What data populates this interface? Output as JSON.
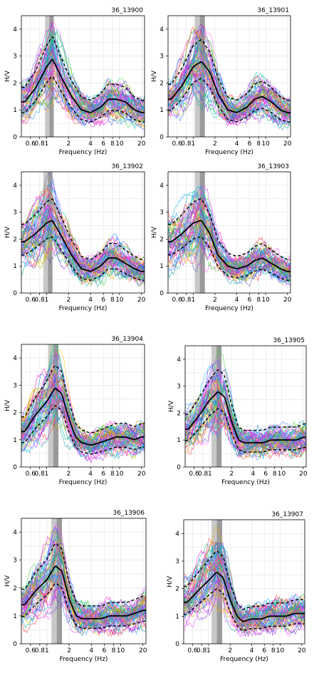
{
  "chart_data": [
    {
      "id": "36_13900",
      "type": "line",
      "title": "36_13900",
      "xlabel": "Frequency (Hz)",
      "ylabel": "H/V",
      "x_scale": "log",
      "xlim": [
        0.45,
        22
      ],
      "ylim": [
        0,
        4.5
      ],
      "xticks": [
        "0.6",
        "0.8",
        "1",
        "2",
        "4",
        "6",
        "8",
        "10",
        "20"
      ],
      "yticks": [
        "0",
        "1",
        "2",
        "3",
        "4"
      ],
      "mean_curve": {
        "x": [
          0.5,
          0.7,
          1.0,
          1.2,
          1.6,
          2.2,
          3.0,
          4.0,
          5.5,
          7.0,
          9.0,
          12,
          16,
          20
        ],
        "y": [
          1.3,
          1.8,
          2.6,
          2.9,
          2.2,
          1.5,
          1.0,
          0.9,
          1.1,
          1.4,
          1.4,
          1.3,
          1.0,
          0.9
        ]
      },
      "peak_band": [
        0.95,
        1.25
      ]
    },
    {
      "id": "36_13901",
      "type": "line",
      "title": "36_13901",
      "xlabel": "Frequency (Hz)",
      "ylabel": "H/V",
      "x_scale": "log",
      "xlim": [
        0.45,
        22
      ],
      "ylim": [
        0,
        4.5
      ],
      "xticks": [
        "0.6",
        "0.8",
        "1",
        "2",
        "4",
        "6",
        "8",
        "10",
        "20"
      ],
      "yticks": [
        "0",
        "1",
        "2",
        "3",
        "4"
      ],
      "mean_curve": {
        "x": [
          0.5,
          0.7,
          1.0,
          1.3,
          1.7,
          2.2,
          3.0,
          4.0,
          5.5,
          7.0,
          9.0,
          12,
          16,
          20
        ],
        "y": [
          1.4,
          1.9,
          2.6,
          2.8,
          2.4,
          1.6,
          1.0,
          0.9,
          1.1,
          1.4,
          1.5,
          1.3,
          1.0,
          0.9
        ]
      },
      "peak_band": [
        1.05,
        1.45
      ]
    },
    {
      "id": "36_13902",
      "type": "line",
      "title": "36_13902",
      "xlabel": "Frequency (Hz)",
      "ylabel": "H/V",
      "x_scale": "log",
      "xlim": [
        0.45,
        22
      ],
      "ylim": [
        0,
        4.5
      ],
      "xticks": [
        "0.6",
        "0.8",
        "1",
        "2",
        "4",
        "6",
        "8",
        "10",
        "20"
      ],
      "yticks": [
        "0",
        "1",
        "2",
        "3",
        "4"
      ],
      "mean_curve": {
        "x": [
          0.5,
          0.7,
          1.0,
          1.2,
          1.6,
          2.2,
          3.0,
          4.0,
          5.5,
          7.0,
          9.0,
          12,
          16,
          20
        ],
        "y": [
          1.9,
          2.2,
          2.6,
          2.7,
          2.1,
          1.4,
          0.9,
          0.8,
          1.0,
          1.3,
          1.3,
          1.1,
          0.9,
          0.8
        ]
      },
      "peak_band": [
        0.9,
        1.2
      ]
    },
    {
      "id": "36_13903",
      "type": "line",
      "title": "36_13903",
      "xlabel": "Frequency (Hz)",
      "ylabel": "H/V",
      "x_scale": "log",
      "xlim": [
        0.45,
        22
      ],
      "ylim": [
        0,
        4.5
      ],
      "xticks": [
        "0.6",
        "0.8",
        "1",
        "2",
        "4",
        "6",
        "8",
        "10",
        "20"
      ],
      "yticks": [
        "0",
        "1",
        "2",
        "3",
        "4"
      ],
      "mean_curve": {
        "x": [
          0.5,
          0.7,
          1.0,
          1.3,
          1.7,
          2.2,
          3.0,
          4.0,
          5.5,
          7.0,
          9.0,
          12,
          16,
          20
        ],
        "y": [
          1.9,
          2.2,
          2.6,
          2.7,
          2.2,
          1.4,
          1.0,
          0.9,
          1.0,
          1.2,
          1.3,
          1.1,
          0.9,
          0.8
        ]
      },
      "peak_band": [
        1.05,
        1.45
      ]
    },
    {
      "id": "36_13904",
      "type": "line",
      "title": "36_13904",
      "xlabel": "Frequency (Hz)",
      "ylabel": "H/V",
      "x_scale": "log",
      "xlim": [
        0.45,
        22
      ],
      "ylim": [
        0,
        4.5
      ],
      "xticks": [
        "0.6",
        "0.8",
        "1",
        "2",
        "4",
        "6",
        "8",
        "10",
        "20"
      ],
      "yticks": [
        "0",
        "1",
        "2",
        "3",
        "4"
      ],
      "mean_curve": {
        "x": [
          0.5,
          0.7,
          1.0,
          1.3,
          1.6,
          2.0,
          2.5,
          3.0,
          4.0,
          5.5,
          7.0,
          9.0,
          12,
          16,
          20
        ],
        "y": [
          1.3,
          1.9,
          2.4,
          2.9,
          2.7,
          1.8,
          1.1,
          0.9,
          0.8,
          0.9,
          1.0,
          1.1,
          1.1,
          1.0,
          1.1
        ]
      },
      "peak_band": [
        1.05,
        1.45
      ]
    },
    {
      "id": "36_13905",
      "type": "line",
      "title": "36_13905",
      "xlabel": "Frequency (Hz)",
      "ylabel": "H/V",
      "x_scale": "log",
      "xlim": [
        0.45,
        22
      ],
      "ylim": [
        0,
        4.5
      ],
      "xticks": [
        "0.6",
        "0.8",
        "1",
        "2",
        "4",
        "6",
        "8",
        "10",
        "20"
      ],
      "yticks": [
        "0",
        "1",
        "2",
        "3",
        "4"
      ],
      "mean_curve": {
        "x": [
          0.5,
          0.7,
          1.0,
          1.3,
          1.6,
          2.0,
          2.5,
          3.0,
          4.0,
          5.5,
          7.0,
          9.0,
          12,
          16,
          20
        ],
        "y": [
          1.4,
          1.9,
          2.5,
          2.8,
          2.6,
          1.7,
          1.0,
          0.9,
          0.9,
          0.9,
          1.0,
          1.0,
          1.0,
          1.0,
          1.1
        ]
      },
      "peak_band": [
        1.05,
        1.45
      ]
    },
    {
      "id": "36_13906",
      "type": "line",
      "title": "36_13906",
      "xlabel": "Frequency (Hz)",
      "ylabel": "H/V",
      "x_scale": "log",
      "xlim": [
        0.45,
        22
      ],
      "ylim": [
        0,
        4.5
      ],
      "xticks": [
        "0.6",
        "0.8",
        "1",
        "2",
        "4",
        "6",
        "8",
        "10",
        "20"
      ],
      "yticks": [
        "0",
        "1",
        "2",
        "3",
        "4"
      ],
      "mean_curve": {
        "x": [
          0.5,
          0.7,
          1.0,
          1.3,
          1.6,
          2.0,
          2.5,
          3.0,
          4.0,
          5.5,
          7.0,
          9.0,
          12,
          16,
          20
        ],
        "y": [
          1.4,
          1.9,
          2.3,
          2.8,
          2.6,
          1.6,
          1.0,
          0.9,
          0.9,
          0.9,
          1.0,
          1.0,
          1.0,
          1.1,
          1.2
        ]
      },
      "peak_band": [
        1.15,
        1.6
      ]
    },
    {
      "id": "36_13907",
      "type": "line",
      "title": "36_13907",
      "xlabel": "Frequency (Hz)",
      "ylabel": "H/V",
      "x_scale": "log",
      "xlim": [
        0.45,
        22
      ],
      "ylim": [
        0,
        4.5
      ],
      "xticks": [
        "0.6",
        "0.8",
        "1",
        "2",
        "4",
        "6",
        "8",
        "10",
        "20"
      ],
      "yticks": [
        "0",
        "1",
        "2",
        "3",
        "4"
      ],
      "mean_curve": {
        "x": [
          0.5,
          0.7,
          1.0,
          1.3,
          1.6,
          2.0,
          2.5,
          3.0,
          4.0,
          5.5,
          7.0,
          9.0,
          12,
          16,
          20
        ],
        "y": [
          1.5,
          1.9,
          2.3,
          2.6,
          2.4,
          1.6,
          1.0,
          0.8,
          0.9,
          0.9,
          1.0,
          1.0,
          1.0,
          1.1,
          1.1
        ]
      },
      "peak_band": [
        1.1,
        1.55
      ]
    }
  ]
}
